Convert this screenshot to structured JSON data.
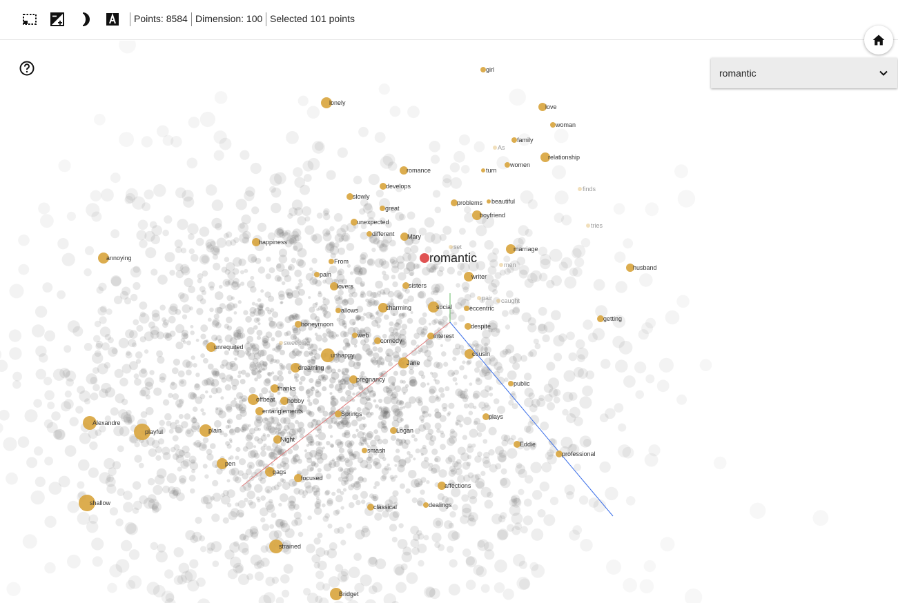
{
  "toolbar": {
    "tools": [
      {
        "name": "select-region-tool",
        "icon": "dashed-selection-icon"
      },
      {
        "name": "toggle-night-mode-tool",
        "icon": "contrast-icon"
      },
      {
        "name": "theme-tool",
        "icon": "half-moon-icon"
      },
      {
        "name": "toggle-labels-tool",
        "icon": "text-label-icon"
      }
    ],
    "points_text": "Points: 8584",
    "dimension_text": "Dimension: 100",
    "selected_text": "Selected 101 points"
  },
  "help": {
    "icon": "help-circle-icon"
  },
  "home": {
    "icon": "home-icon"
  },
  "selector": {
    "value": "romantic",
    "chevron": "chevron-down-icon"
  },
  "colors": {
    "selected_point": "#d8a43c",
    "focus_point": "#e05252",
    "background_point": "#666666",
    "axis_x": "#e07b7b",
    "axis_y": "#3a6ee8",
    "axis_z": "#66bb66"
  },
  "scatter": {
    "focus_label": "romantic",
    "labels": [
      {
        "text": "girl",
        "faint": false
      },
      {
        "text": "lonely",
        "faint": false
      },
      {
        "text": "love",
        "faint": false
      },
      {
        "text": "woman",
        "faint": false
      },
      {
        "text": "family",
        "faint": false
      },
      {
        "text": "As",
        "faint": true
      },
      {
        "text": "relationship",
        "faint": false
      },
      {
        "text": "women",
        "faint": false
      },
      {
        "text": "romance",
        "faint": false
      },
      {
        "text": "turn",
        "faint": false
      },
      {
        "text": "finds",
        "faint": true
      },
      {
        "text": "develops",
        "faint": false
      },
      {
        "text": "slowly",
        "faint": false
      },
      {
        "text": "problems",
        "faint": false
      },
      {
        "text": "beautiful",
        "faint": false
      },
      {
        "text": "great",
        "faint": false
      },
      {
        "text": "boyfriend",
        "faint": false
      },
      {
        "text": "unexpected",
        "faint": false
      },
      {
        "text": "tries",
        "faint": true
      },
      {
        "text": "different",
        "faint": false
      },
      {
        "text": "Mary",
        "faint": false
      },
      {
        "text": "happiness",
        "faint": false
      },
      {
        "text": "set",
        "faint": true
      },
      {
        "text": "marriage",
        "faint": false
      },
      {
        "text": "annoying",
        "faint": false
      },
      {
        "text": "From",
        "faint": false
      },
      {
        "text": "men",
        "faint": true
      },
      {
        "text": "husband",
        "faint": false
      },
      {
        "text": "pain",
        "faint": false
      },
      {
        "text": "writer",
        "faint": false
      },
      {
        "text": "lovers",
        "faint": false
      },
      {
        "text": "sisters",
        "faint": false
      },
      {
        "text": "pair",
        "faint": true
      },
      {
        "text": "caught",
        "faint": true
      },
      {
        "text": "allows",
        "faint": false
      },
      {
        "text": "charming",
        "faint": false
      },
      {
        "text": "social",
        "faint": false
      },
      {
        "text": "eccentric",
        "faint": false
      },
      {
        "text": "getting",
        "faint": false
      },
      {
        "text": "honeymoon",
        "faint": false
      },
      {
        "text": "despite",
        "faint": false
      },
      {
        "text": "web",
        "faint": false
      },
      {
        "text": "interest",
        "faint": false
      },
      {
        "text": "sweeping",
        "faint": true
      },
      {
        "text": "comedy",
        "faint": false
      },
      {
        "text": "unrequited",
        "faint": false
      },
      {
        "text": "unhappy",
        "faint": false
      },
      {
        "text": "cousin",
        "faint": false
      },
      {
        "text": "Jane",
        "faint": false
      },
      {
        "text": "dreaming",
        "faint": false
      },
      {
        "text": "pregnancy",
        "faint": false
      },
      {
        "text": "public",
        "faint": false
      },
      {
        "text": "thanks",
        "faint": false
      },
      {
        "text": "offbeat",
        "faint": false
      },
      {
        "text": "hobby",
        "faint": false
      },
      {
        "text": "entanglements",
        "faint": false
      },
      {
        "text": "Springs",
        "faint": false
      },
      {
        "text": "plays",
        "faint": false
      },
      {
        "text": "Alexandre",
        "faint": false
      },
      {
        "text": "playful",
        "faint": false
      },
      {
        "text": "plain",
        "faint": false
      },
      {
        "text": "Logan",
        "faint": false
      },
      {
        "text": "Night",
        "faint": false
      },
      {
        "text": "Eddie",
        "faint": false
      },
      {
        "text": "smash",
        "faint": false
      },
      {
        "text": "professional",
        "faint": false
      },
      {
        "text": "pen",
        "faint": false
      },
      {
        "text": "gags",
        "faint": false
      },
      {
        "text": "focused",
        "faint": false
      },
      {
        "text": "affections",
        "faint": false
      },
      {
        "text": "shallow",
        "faint": false
      },
      {
        "text": "classical",
        "faint": false
      },
      {
        "text": "dealings",
        "faint": false
      },
      {
        "text": "strained",
        "faint": false
      },
      {
        "text": "Bridget",
        "faint": false
      }
    ]
  }
}
